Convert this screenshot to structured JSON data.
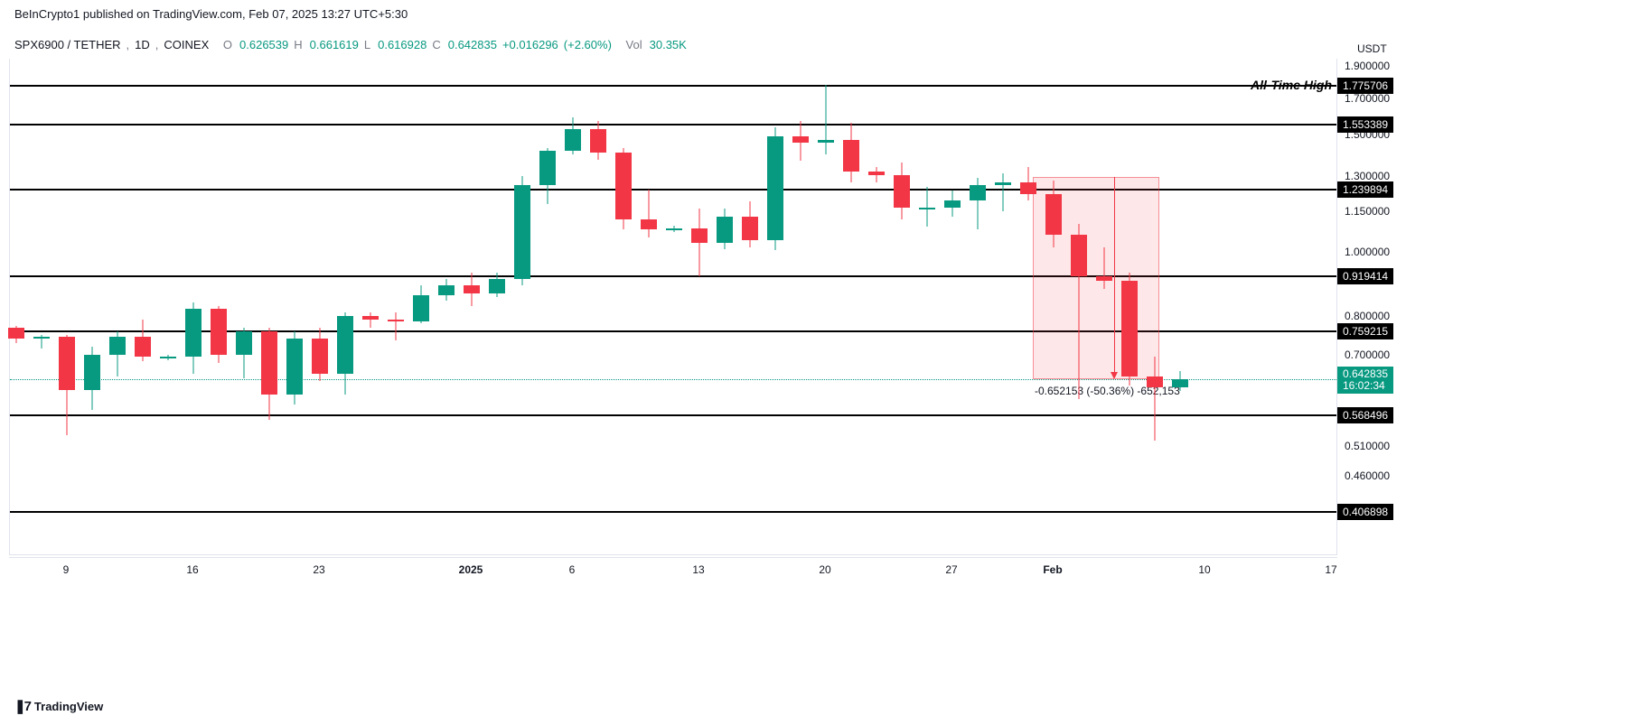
{
  "header": {
    "publisher": "BeInCrypto1",
    "published_text": "published on TradingView.com,",
    "timestamp": "Feb 07, 2025 13:27 UTC+5:30"
  },
  "symbol_bar": {
    "symbol": "SPX6900 / TETHER",
    "interval": "1D",
    "exchange": "COINEX",
    "o_label": "O",
    "o_value": "0.626539",
    "h_label": "H",
    "h_value": "0.661619",
    "l_label": "L",
    "l_value": "0.616928",
    "c_label": "C",
    "c_value": "0.642835",
    "change": "+0.016296",
    "change_pct": "(+2.60%)",
    "vol_label": "Vol",
    "vol_value": "30.35K"
  },
  "y_axis": {
    "title": "USDT",
    "min": 0.35,
    "max": 1.95,
    "ticks": [
      1.9,
      1.7,
      1.5,
      1.3,
      1.15,
      1.0,
      0.8,
      0.7,
      0.51,
      0.46
    ],
    "tick_color": "#131722"
  },
  "horizontal_lines": [
    {
      "price": 1.775706,
      "label": "1.775706"
    },
    {
      "price": 1.553389,
      "label": "1.553389"
    },
    {
      "price": 1.239894,
      "label": "1.239894"
    },
    {
      "price": 0.919414,
      "label": "0.919414"
    },
    {
      "price": 0.759215,
      "label": "0.759215"
    },
    {
      "price": 0.568496,
      "label": "0.568496"
    },
    {
      "price": 0.406898,
      "label": "0.406898"
    }
  ],
  "current_price": {
    "value": 0.642835,
    "label": "0.642835",
    "countdown": "16:02:34"
  },
  "annotation": {
    "ath_label": "All-Time High"
  },
  "measurement": {
    "text1": "-0.652153 (-50.36%)",
    "text2": "-652,153"
  },
  "x_axis": {
    "ticks": [
      {
        "label": "9",
        "idx": 2,
        "bold": false
      },
      {
        "label": "16",
        "idx": 7,
        "bold": false
      },
      {
        "label": "23",
        "idx": 12,
        "bold": false
      },
      {
        "label": "2025",
        "idx": 18,
        "bold": true
      },
      {
        "label": "6",
        "idx": 22,
        "bold": false
      },
      {
        "label": "13",
        "idx": 27,
        "bold": false
      },
      {
        "label": "20",
        "idx": 32,
        "bold": false
      },
      {
        "label": "27",
        "idx": 37,
        "bold": false
      },
      {
        "label": "Feb",
        "idx": 41,
        "bold": true
      },
      {
        "label": "10",
        "idx": 47,
        "bold": false
      },
      {
        "label": "17",
        "idx": 52,
        "bold": false
      }
    ]
  },
  "shaded_region": {
    "start_idx": 40.5,
    "end_idx": 45.5,
    "price_top": 1.295,
    "price_bottom": 0.643
  },
  "candles": [
    {
      "idx": 0,
      "o": 0.768,
      "h": 0.773,
      "l": 0.73,
      "c": 0.74
    },
    {
      "idx": 1,
      "o": 0.74,
      "h": 0.75,
      "l": 0.715,
      "c": 0.745
    },
    {
      "idx": 2,
      "o": 0.745,
      "h": 0.75,
      "l": 0.53,
      "c": 0.62
    },
    {
      "idx": 3,
      "o": 0.62,
      "h": 0.72,
      "l": 0.578,
      "c": 0.7
    },
    {
      "idx": 4,
      "o": 0.7,
      "h": 0.76,
      "l": 0.65,
      "c": 0.745
    },
    {
      "idx": 5,
      "o": 0.745,
      "h": 0.79,
      "l": 0.685,
      "c": 0.695
    },
    {
      "idx": 6,
      "o": 0.695,
      "h": 0.7,
      "l": 0.688,
      "c": 0.695
    },
    {
      "idx": 7,
      "o": 0.695,
      "h": 0.84,
      "l": 0.655,
      "c": 0.82
    },
    {
      "idx": 8,
      "o": 0.82,
      "h": 0.83,
      "l": 0.68,
      "c": 0.7
    },
    {
      "idx": 9,
      "o": 0.7,
      "h": 0.77,
      "l": 0.645,
      "c": 0.76
    },
    {
      "idx": 10,
      "o": 0.76,
      "h": 0.77,
      "l": 0.56,
      "c": 0.61
    },
    {
      "idx": 11,
      "o": 0.61,
      "h": 0.76,
      "l": 0.59,
      "c": 0.74
    },
    {
      "idx": 12,
      "o": 0.74,
      "h": 0.77,
      "l": 0.64,
      "c": 0.655
    },
    {
      "idx": 13,
      "o": 0.655,
      "h": 0.81,
      "l": 0.61,
      "c": 0.8
    },
    {
      "idx": 14,
      "o": 0.8,
      "h": 0.81,
      "l": 0.77,
      "c": 0.79
    },
    {
      "idx": 15,
      "o": 0.79,
      "h": 0.81,
      "l": 0.735,
      "c": 0.785
    },
    {
      "idx": 16,
      "o": 0.785,
      "h": 0.89,
      "l": 0.78,
      "c": 0.86
    },
    {
      "idx": 17,
      "o": 0.86,
      "h": 0.91,
      "l": 0.845,
      "c": 0.89
    },
    {
      "idx": 18,
      "o": 0.89,
      "h": 0.93,
      "l": 0.83,
      "c": 0.865
    },
    {
      "idx": 19,
      "o": 0.865,
      "h": 0.93,
      "l": 0.855,
      "c": 0.91
    },
    {
      "idx": 20,
      "o": 0.91,
      "h": 1.3,
      "l": 0.89,
      "c": 1.26
    },
    {
      "idx": 21,
      "o": 1.26,
      "h": 1.43,
      "l": 1.18,
      "c": 1.42
    },
    {
      "idx": 22,
      "o": 1.42,
      "h": 1.59,
      "l": 1.4,
      "c": 1.53
    },
    {
      "idx": 23,
      "o": 1.53,
      "h": 1.57,
      "l": 1.375,
      "c": 1.41
    },
    {
      "idx": 24,
      "o": 1.41,
      "h": 1.43,
      "l": 1.08,
      "c": 1.12
    },
    {
      "idx": 25,
      "o": 1.12,
      "h": 1.24,
      "l": 1.05,
      "c": 1.08
    },
    {
      "idx": 26,
      "o": 1.08,
      "h": 1.095,
      "l": 1.07,
      "c": 1.085
    },
    {
      "idx": 27,
      "o": 1.085,
      "h": 1.16,
      "l": 0.92,
      "c": 1.03
    },
    {
      "idx": 28,
      "o": 1.03,
      "h": 1.16,
      "l": 1.01,
      "c": 1.13
    },
    {
      "idx": 29,
      "o": 1.13,
      "h": 1.19,
      "l": 1.015,
      "c": 1.04
    },
    {
      "idx": 30,
      "o": 1.04,
      "h": 1.54,
      "l": 1.005,
      "c": 1.49
    },
    {
      "idx": 31,
      "o": 1.49,
      "h": 1.57,
      "l": 1.37,
      "c": 1.46
    },
    {
      "idx": 32,
      "o": 1.46,
      "h": 1.78,
      "l": 1.4,
      "c": 1.47
    },
    {
      "idx": 33,
      "o": 1.47,
      "h": 1.56,
      "l": 1.27,
      "c": 1.32
    },
    {
      "idx": 34,
      "o": 1.32,
      "h": 1.34,
      "l": 1.27,
      "c": 1.305
    },
    {
      "idx": 35,
      "o": 1.305,
      "h": 1.36,
      "l": 1.12,
      "c": 1.165
    },
    {
      "idx": 36,
      "o": 1.165,
      "h": 1.25,
      "l": 1.09,
      "c": 1.165
    },
    {
      "idx": 37,
      "o": 1.165,
      "h": 1.235,
      "l": 1.13,
      "c": 1.195
    },
    {
      "idx": 38,
      "o": 1.195,
      "h": 1.29,
      "l": 1.08,
      "c": 1.26
    },
    {
      "idx": 39,
      "o": 1.26,
      "h": 1.31,
      "l": 1.15,
      "c": 1.27
    },
    {
      "idx": 40,
      "o": 1.27,
      "h": 1.34,
      "l": 1.195,
      "c": 1.22
    },
    {
      "idx": 41,
      "o": 1.22,
      "h": 1.28,
      "l": 1.015,
      "c": 1.06
    },
    {
      "idx": 42,
      "o": 1.06,
      "h": 1.1,
      "l": 0.6,
      "c": 0.92
    },
    {
      "idx": 43,
      "o": 0.92,
      "h": 1.015,
      "l": 0.88,
      "c": 0.905
    },
    {
      "idx": 44,
      "o": 0.905,
      "h": 0.93,
      "l": 0.63,
      "c": 0.65
    },
    {
      "idx": 45,
      "o": 0.65,
      "h": 0.695,
      "l": 0.52,
      "c": 0.625
    },
    {
      "idx": 46,
      "o": 0.625,
      "h": 0.662,
      "l": 0.617,
      "c": 0.643
    }
  ],
  "colors": {
    "up": "#089981",
    "down": "#f23645",
    "text": "#131722",
    "grey": "#787b86",
    "grid": "#e0e3eb",
    "bg": "#ffffff",
    "shade": "rgba(242,54,69,0.12)"
  },
  "footer": {
    "brand": "TradingView"
  }
}
